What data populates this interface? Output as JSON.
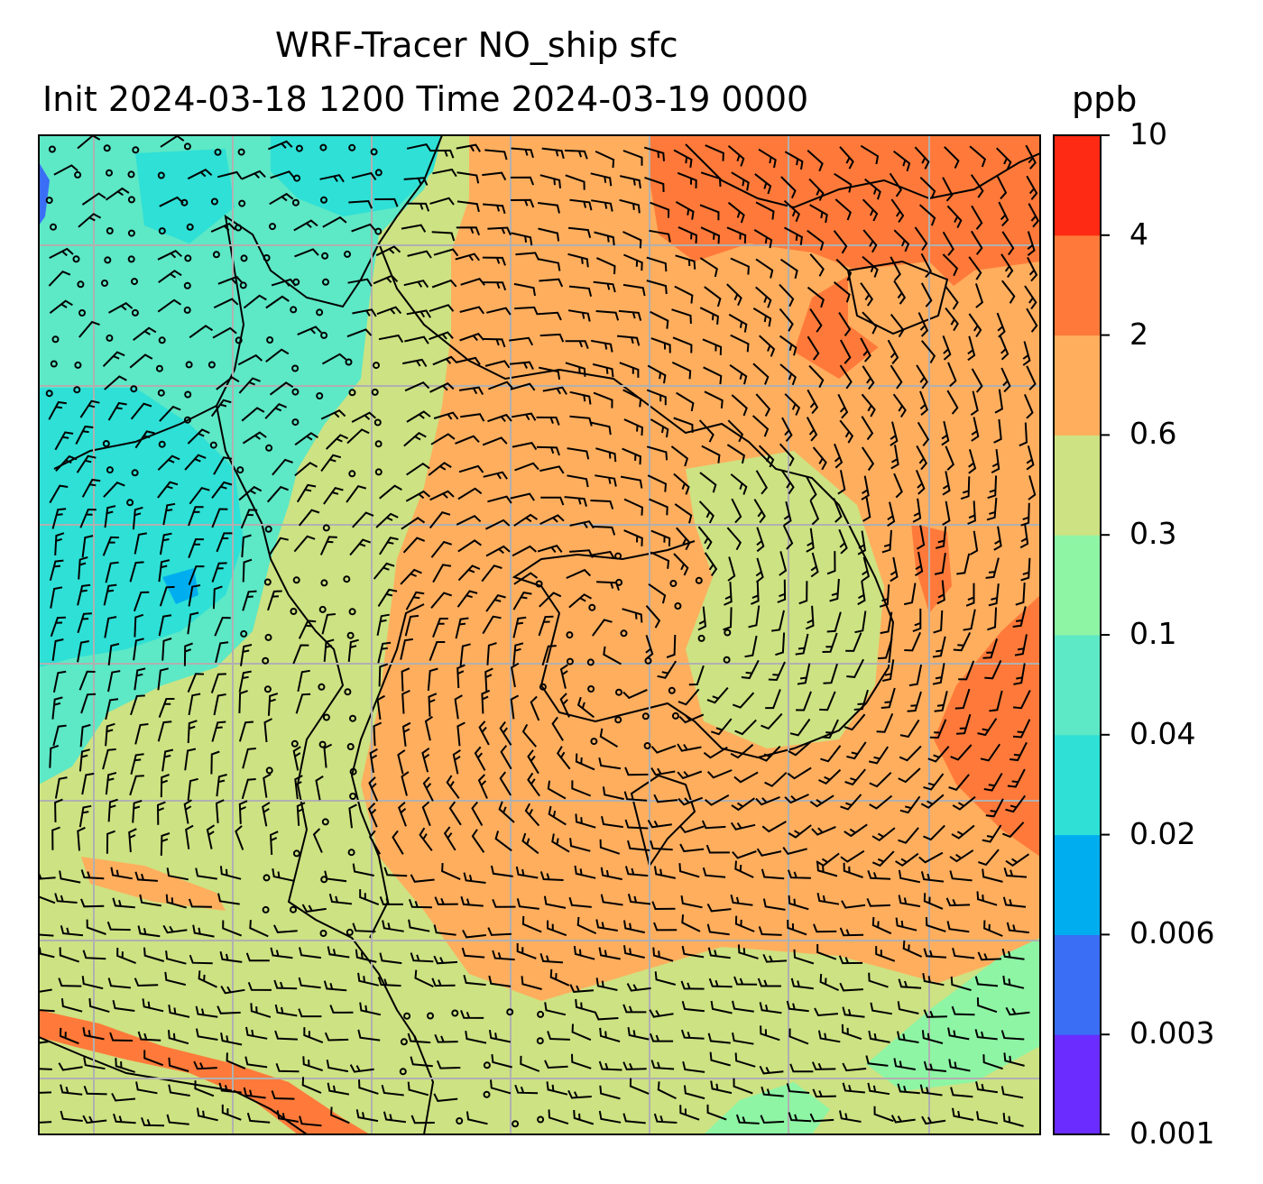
{
  "title": {
    "line1": "WRF-Tracer NO_ship sfc",
    "line2": "Init 2024-03-18 1200 Time 2024-03-19 0000",
    "units": "ppb"
  },
  "colorbar": {
    "ticks": [
      "0.001",
      "0.003",
      "0.006",
      "0.02",
      "0.04",
      "0.1",
      "0.3",
      "0.6",
      "2",
      "4",
      "10"
    ],
    "colors": [
      "#6a2cff",
      "#3a6ef5",
      "#00aeef",
      "#2ee0d6",
      "#5de8c6",
      "#8ef5a5",
      "#cde282",
      "#ffae5e",
      "#ff7a3a",
      "#ff2a14"
    ]
  },
  "map": {
    "field_colors": {
      "cyan": "#2ee0d6",
      "aqua": "#5de8c6",
      "light_green": "#8ef5a5",
      "yellow_green": "#cde282",
      "orange": "#ffae5e",
      "dark_orange": "#ff7a3a",
      "blue": "#3a6ef5"
    },
    "gridline_color": "#b0b0b0",
    "overlay": "wind-barbs",
    "coastline": "black"
  }
}
